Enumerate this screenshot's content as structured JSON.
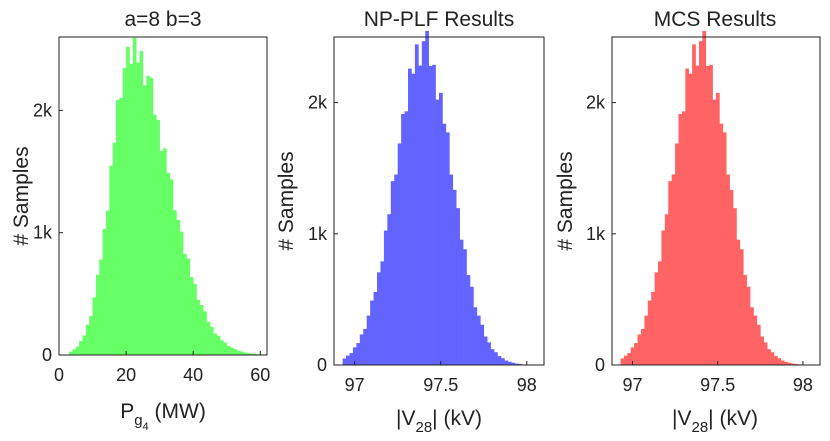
{
  "chart_data": [
    {
      "type": "bar",
      "title": "a=8 b=3",
      "xlabel_main": "P",
      "xlabel_sub": "g",
      "xlabel_subsub": "4",
      "xlabel_unit": " (MW)",
      "ylabel": "# Samples",
      "xlim": [
        0,
        62
      ],
      "ylim": [
        0,
        2600
      ],
      "xticks": [
        0,
        20,
        40,
        60
      ],
      "xtick_labels": [
        "0",
        "20",
        "40",
        "60"
      ],
      "yticks": [
        0,
        1000,
        2000
      ],
      "ytick_labels": [
        "0",
        "1k",
        "2k"
      ],
      "color": "#66ff66",
      "bins": {
        "start": 3,
        "width": 1,
        "profile": "skewed",
        "mode": 21.5,
        "left_sigma": 6.0,
        "right_sigma": 11.0,
        "peak": 2480,
        "end": 60
      }
    },
    {
      "type": "bar",
      "title": "NP-PLF Results",
      "xlabel_main": "|V",
      "xlabel_sub": "28",
      "xlabel_unit": "| (kV)",
      "ylabel": "# Samples",
      "xlim": [
        96.88,
        98.1
      ],
      "ylim": [
        0,
        2500
      ],
      "xticks": [
        97,
        97.5,
        98
      ],
      "xtick_labels": [
        "97",
        "97.5",
        "98"
      ],
      "yticks": [
        0,
        1000,
        2000
      ],
      "ytick_labels": [
        "0",
        "1k",
        "2k"
      ],
      "color": "#6363ff",
      "bins": {
        "start": 96.93,
        "width": 0.02,
        "profile": "normal",
        "mean": 97.4,
        "sigma": 0.165,
        "peak": 2420,
        "end": 98.1
      }
    },
    {
      "type": "bar",
      "title": "MCS Results",
      "xlabel_main": "|V",
      "xlabel_sub": "28",
      "xlabel_unit": "| (kV)",
      "ylabel": "# Samples",
      "xlim": [
        96.88,
        98.1
      ],
      "ylim": [
        0,
        2500
      ],
      "xticks": [
        97,
        97.5,
        98
      ],
      "xtick_labels": [
        "97",
        "97.5",
        "98"
      ],
      "yticks": [
        0,
        1000,
        2000
      ],
      "ytick_labels": [
        "0",
        "1k",
        "2k"
      ],
      "color": "#ff6363",
      "bins": {
        "start": 96.93,
        "width": 0.02,
        "profile": "normal",
        "mean": 97.4,
        "sigma": 0.165,
        "peak": 2420,
        "end": 98.1
      }
    }
  ]
}
